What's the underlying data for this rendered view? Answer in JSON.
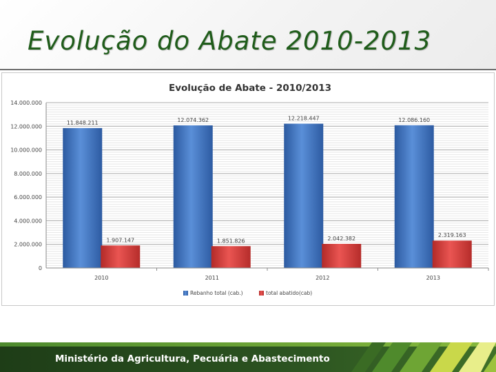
{
  "slide": {
    "title": "Evolução do Abate 2010-2013",
    "footer": "Ministério da Agricultura, Pecuária e Abastecimento"
  },
  "colors": {
    "title": "#1f5c1a",
    "footer_bg": "#2c5421",
    "series_blue": "#3f74c2",
    "series_red": "#d83a38"
  },
  "chart_data": {
    "type": "bar",
    "title": "Evolução de Abate - 2010/2013",
    "categories": [
      "2010",
      "2011",
      "2012",
      "2013"
    ],
    "series": [
      {
        "name": "Rebanho total (cab.)",
        "color": "#3f74c2",
        "values": [
          11848211,
          12074362,
          12218447,
          12086160
        ],
        "labels": [
          "11.848.211",
          "12.074.362",
          "12.218.447",
          "12.086.160"
        ]
      },
      {
        "name": "total abatido(cab)",
        "color": "#d83a38",
        "values": [
          1907147,
          1851826,
          2042382,
          2319163
        ],
        "labels": [
          "1.907.147",
          "1.851.826",
          "2.042.382",
          "2.319.163"
        ]
      }
    ],
    "yticks": [
      0,
      2000000,
      4000000,
      6000000,
      8000000,
      10000000,
      12000000,
      14000000
    ],
    "ytick_labels": [
      "0",
      "2.000.000",
      "4.000.000",
      "6.000.000",
      "8.000.000",
      "10.000.000",
      "12.000.000",
      "14.000.000"
    ],
    "ylim": [
      0,
      14000000
    ],
    "grid": true,
    "legend": "bottom"
  }
}
